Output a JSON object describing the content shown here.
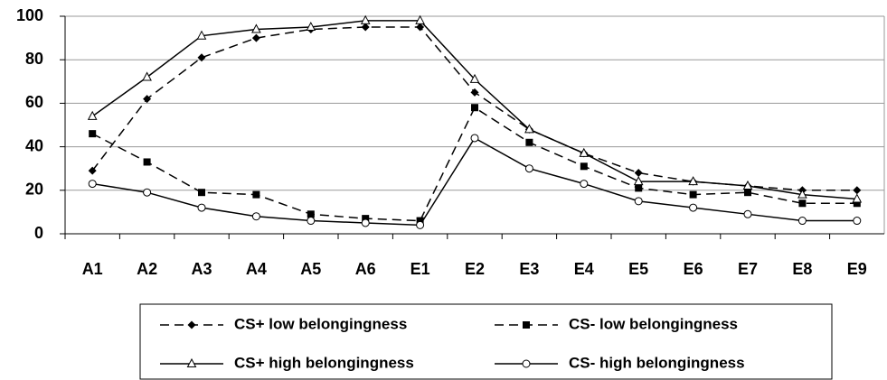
{
  "chart_data": {
    "type": "line",
    "categories": [
      "A1",
      "A2",
      "A3",
      "A4",
      "A5",
      "A6",
      "E1",
      "E2",
      "E3",
      "E4",
      "E5",
      "E6",
      "E7",
      "E8",
      "E9"
    ],
    "series": [
      {
        "name": "CS+ low belongingness",
        "color": "#000000",
        "dashed": true,
        "marker": "diamond",
        "values": [
          29,
          62,
          81,
          90,
          94,
          95,
          95,
          65,
          48,
          37,
          28,
          24,
          22,
          20,
          20
        ]
      },
      {
        "name": "CS- low belongingness",
        "color": "#000000",
        "dashed": true,
        "marker": "square",
        "values": [
          46,
          33,
          19,
          18,
          9,
          7,
          6,
          58,
          42,
          31,
          21,
          18,
          19,
          14,
          14
        ]
      },
      {
        "name": "CS+ high belongingness",
        "color": "#000000",
        "dashed": false,
        "marker": "triangle",
        "values": [
          54,
          72,
          91,
          94,
          95,
          98,
          98,
          71,
          48,
          37,
          24,
          24,
          22,
          18,
          16
        ]
      },
      {
        "name": "CS- high belongingness",
        "color": "#000000",
        "dashed": false,
        "marker": "circle",
        "values": [
          23,
          19,
          12,
          8,
          6,
          5,
          4,
          44,
          30,
          23,
          15,
          12,
          9,
          6,
          6
        ]
      }
    ],
    "ylim": [
      0,
      100
    ],
    "yticks": [
      0,
      20,
      40,
      60,
      80,
      100
    ],
    "grid": true,
    "legend": "bottom"
  }
}
